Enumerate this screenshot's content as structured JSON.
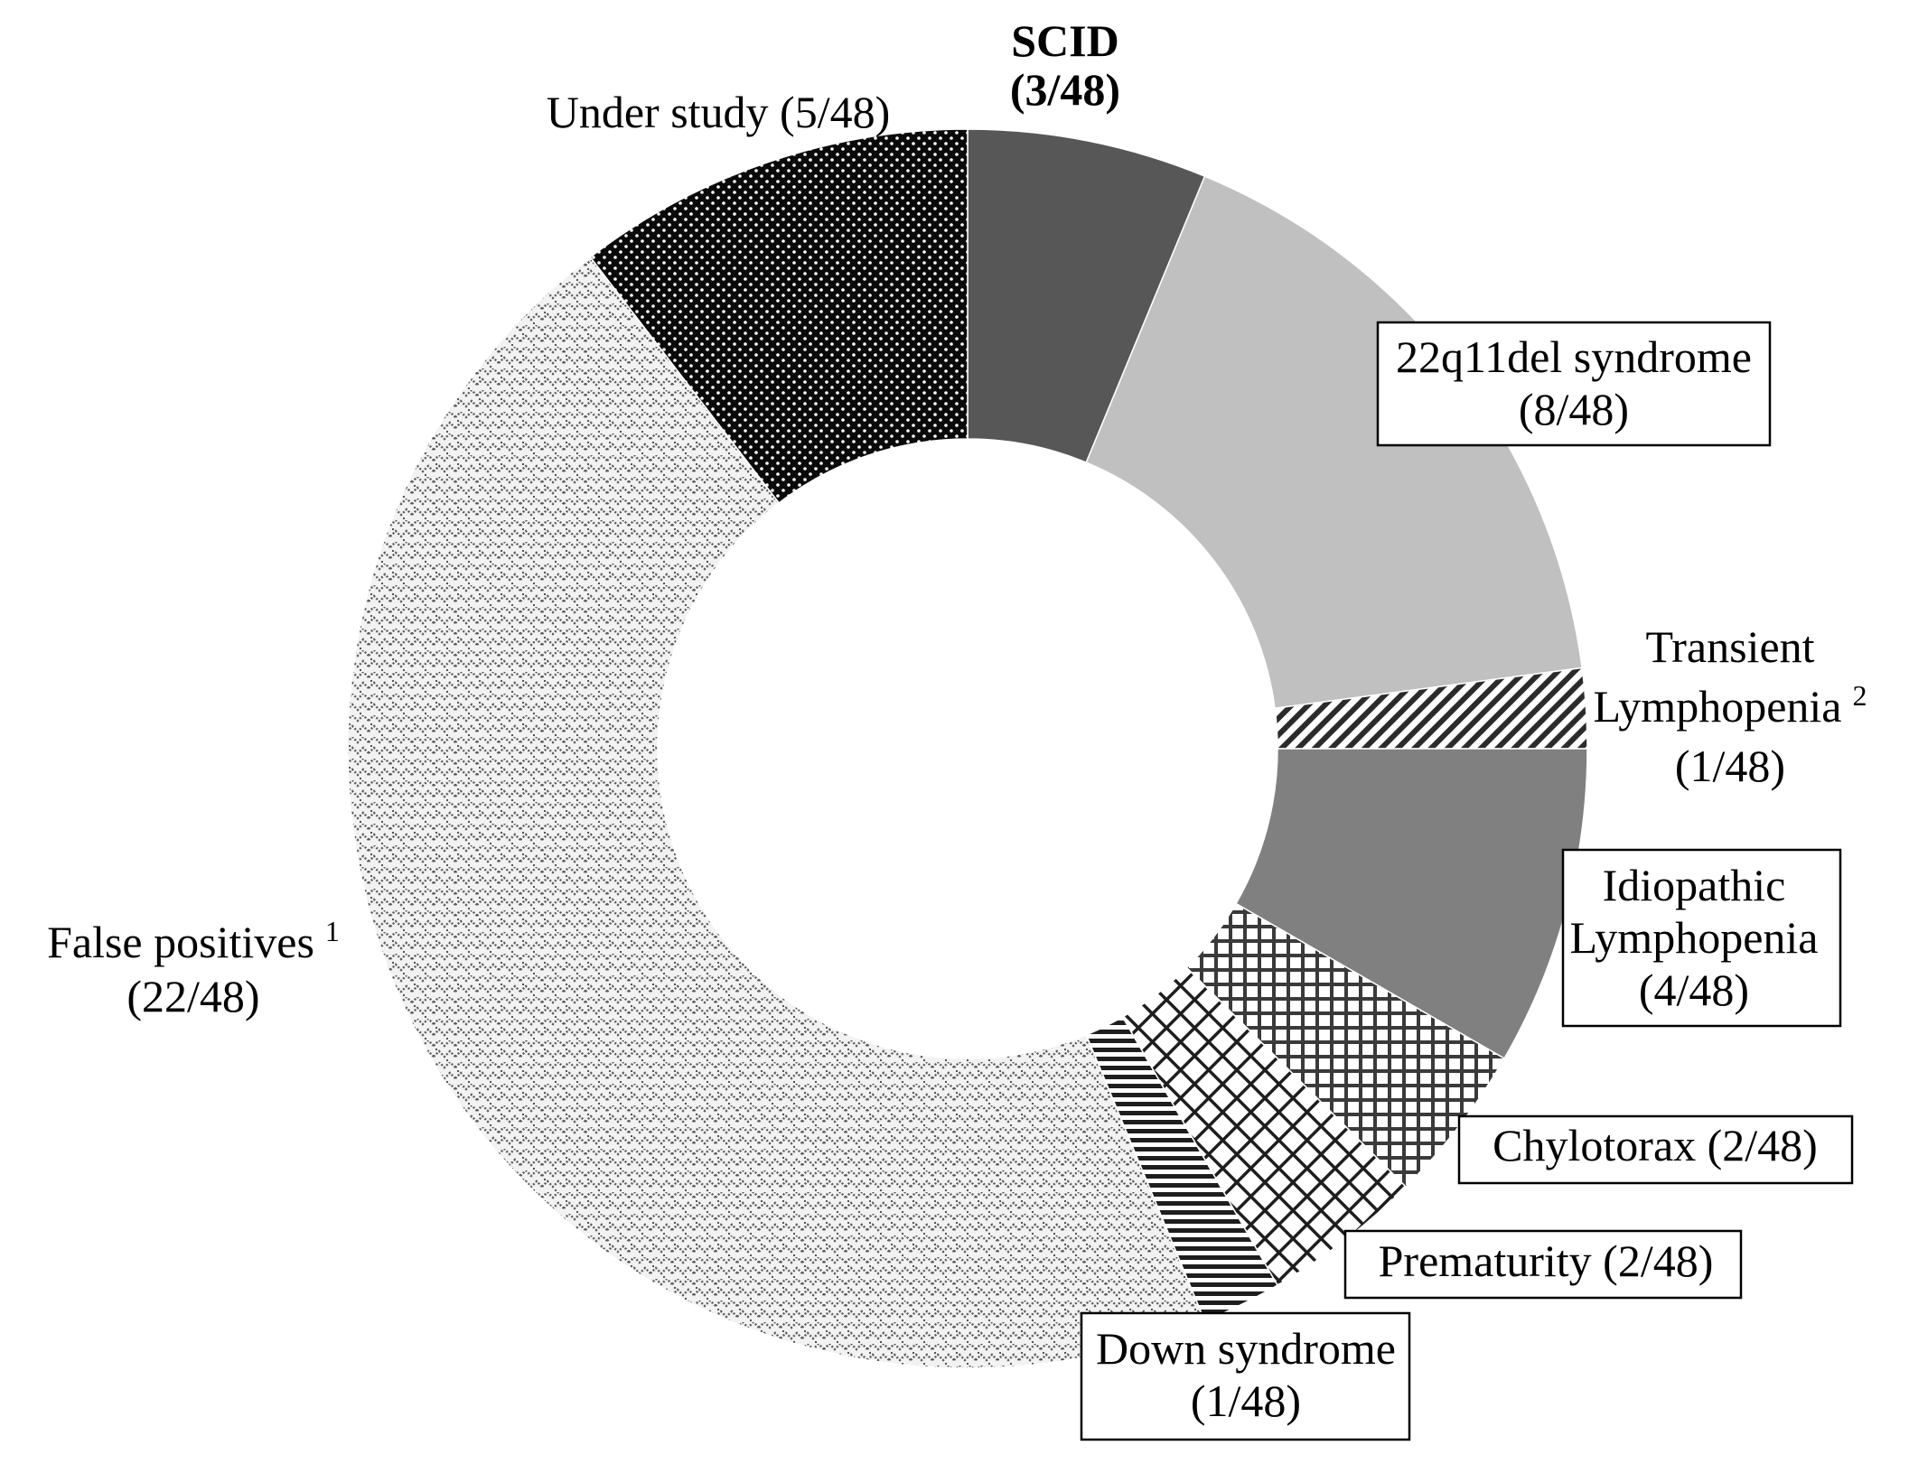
{
  "chart_data": {
    "type": "pie",
    "variant": "donut",
    "title": "",
    "total": 48,
    "direction": "clockwise",
    "start": "top",
    "slices": [
      {
        "key": "scid",
        "label": "SCID",
        "count_label": "(3/48)",
        "value": 3,
        "fill": "#575757",
        "pattern": "solid",
        "bold": true,
        "boxed": false
      },
      {
        "key": "22q11del",
        "label": "22q11del syndrome",
        "count_label": "(8/48)",
        "value": 8,
        "fill": "#c0c0c0",
        "pattern": "solid",
        "bold": false,
        "boxed": true
      },
      {
        "key": "transient-lymphopenia",
        "label": "Transient",
        "label_line2": "Lymphopenia",
        "superscript": "2",
        "count_label": "(1/48)",
        "value": 1,
        "fill": "#2b2b2b",
        "pattern": "diagonal-stripes",
        "bold": false,
        "boxed": false
      },
      {
        "key": "idiopathic-lymphopenia",
        "label": "Idiopathic",
        "label_line2": "Lymphopenia",
        "count_label": "(4/48)",
        "value": 4,
        "fill": "#808080",
        "pattern": "solid",
        "bold": false,
        "boxed": true
      },
      {
        "key": "chylotorax",
        "label": "Chylotorax (2/48)",
        "value": 2,
        "fill": "#3a3a3a",
        "pattern": "square-grid",
        "bold": false,
        "boxed": true
      },
      {
        "key": "prematurity",
        "label": "Prematurity (2/48)",
        "value": 2,
        "fill": "#1e1e1e",
        "pattern": "diagonal-grid",
        "bold": false,
        "boxed": true
      },
      {
        "key": "down-syndrome",
        "label": "Down syndrome",
        "count_label": "(1/48)",
        "value": 1,
        "fill": "#1e1e1e",
        "pattern": "horizontal-stripes",
        "bold": false,
        "boxed": true
      },
      {
        "key": "false-positives",
        "label": "False positives",
        "superscript": "1",
        "count_label": "(22/48)",
        "value": 22,
        "fill": "#555555",
        "pattern": "zigzag-dots",
        "bold": false,
        "boxed": false
      },
      {
        "key": "under-study",
        "label": "Under study (5/48)",
        "value": 5,
        "fill": "#0a0a0a",
        "pattern": "dots-on-black",
        "bold": false,
        "boxed": false
      }
    ]
  }
}
